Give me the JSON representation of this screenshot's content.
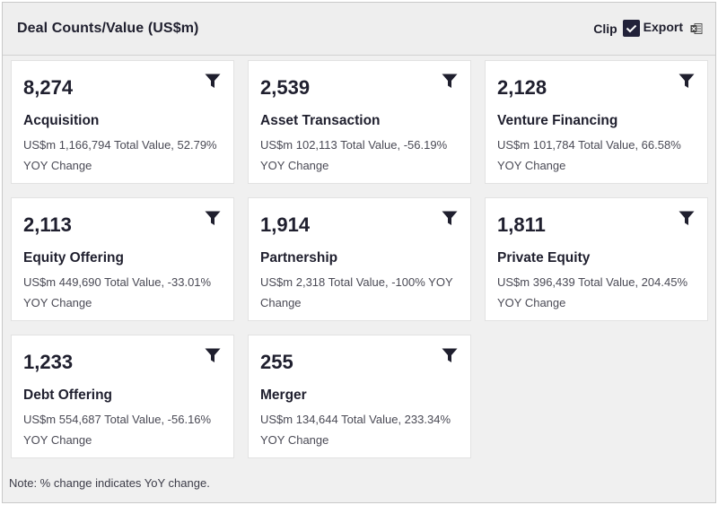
{
  "header": {
    "title": "Deal Counts/Value (US$m)",
    "clip_label": "Clip",
    "export_label": "Export",
    "clip_checked": true
  },
  "cards": [
    {
      "count": "8,274",
      "name": "Acquisition",
      "desc": "US$m 1,166,794 Total Value, 52.79% YOY Change"
    },
    {
      "count": "2,539",
      "name": "Asset Transaction",
      "desc": "US$m 102,113 Total Value, -56.19% YOY Change"
    },
    {
      "count": "2,128",
      "name": "Venture Financing",
      "desc": "US$m 101,784 Total Value, 66.58% YOY Change"
    },
    {
      "count": "2,113",
      "name": "Equity Offering",
      "desc": "US$m 449,690 Total Value, -33.01% YOY Change"
    },
    {
      "count": "1,914",
      "name": "Partnership",
      "desc": "US$m 2,318 Total Value, -100% YOY Change"
    },
    {
      "count": "1,811",
      "name": "Private Equity",
      "desc": "US$m 396,439 Total Value, 204.45% YOY Change"
    },
    {
      "count": "1,233",
      "name": "Debt Offering",
      "desc": "US$m 554,687 Total Value, -56.16% YOY Change"
    },
    {
      "count": "255",
      "name": "Merger",
      "desc": "US$m 134,644 Total Value, 233.34% YOY Change"
    }
  ],
  "note": "Note: % change indicates YoY change.",
  "colors": {
    "panel_bg": "#f0f0f0",
    "card_bg": "#ffffff",
    "text_dark": "#1f1f2e",
    "clip_check_bg": "#22223a"
  },
  "icons": {
    "filter": "filter-icon",
    "check": "check-icon",
    "excel": "excel-icon"
  }
}
